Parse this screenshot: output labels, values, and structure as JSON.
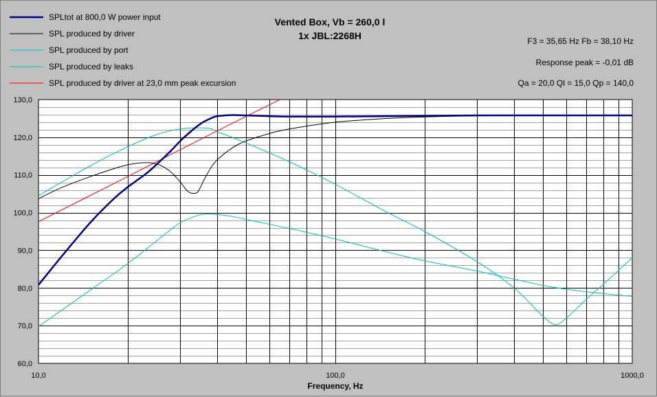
{
  "chart_data": {
    "type": "line",
    "title": "Vented Box, Vb = 260,0 l",
    "subtitle": "1x JBL:2268H",
    "xlabel": "Frequency, Hz",
    "ylabel": "",
    "x_scale": "log",
    "xlim": [
      10,
      1000
    ],
    "ylim": [
      60,
      130
    ],
    "grid": true,
    "legend_position": "top-left",
    "x_tick_labels": [
      "10,0",
      "100,0",
      "1000,0"
    ],
    "y_tick_labels": [
      "130,0",
      "120,0",
      "110,0",
      "100,0",
      "90,0",
      "80,0",
      "70,0",
      "60,0"
    ],
    "info": {
      "line1": "F3 = 35,65 Hz  Fb = 38,10 Hz",
      "line2": "Response peak = -0,01 dB",
      "line3": "Qa = 20,0  Ql = 15,0  Qp = 140,0"
    },
    "series": [
      {
        "name": "SPLtot at 800,0 W power input",
        "color": "#000080",
        "width": 2.5,
        "x": [
          10,
          12,
          15,
          18,
          20,
          23,
          25,
          28,
          30,
          32,
          35,
          38,
          40,
          45,
          50,
          60,
          70,
          100,
          150,
          200,
          300,
          500,
          700,
          1000
        ],
        "y": [
          80.8,
          88.5,
          97.5,
          103.8,
          106.8,
          110.3,
          112.8,
          116.5,
          119.0,
          121.0,
          123.5,
          125.0,
          125.6,
          125.9,
          125.8,
          125.6,
          125.5,
          125.5,
          125.6,
          125.7,
          125.8,
          125.8,
          125.8,
          125.8
        ]
      },
      {
        "name": "SPL produced by driver",
        "color": "#000000",
        "width": 1,
        "x": [
          10,
          12,
          15,
          18,
          20,
          22,
          24,
          26,
          28,
          30,
          32,
          34,
          35,
          36,
          38,
          40,
          45,
          50,
          60,
          70,
          100,
          150,
          200,
          300,
          500,
          1000
        ],
        "y": [
          103.7,
          106.7,
          109.6,
          111.7,
          112.7,
          113.2,
          113.2,
          112.4,
          110.7,
          108.2,
          105.5,
          105.2,
          106.5,
          108.5,
          111.8,
          114.0,
          117.2,
          119.0,
          121.0,
          122.2,
          124.0,
          125.0,
          125.4,
          125.7,
          125.8,
          125.8
        ]
      },
      {
        "name": "SPL produced by port",
        "color": "#00c0c0",
        "width": 1,
        "x": [
          10,
          15,
          20,
          25,
          30,
          35,
          38,
          40,
          50,
          70,
          100,
          150,
          200,
          300,
          400,
          500,
          550,
          600,
          700,
          800,
          1000
        ],
        "y": [
          104.5,
          112.5,
          117.5,
          120.7,
          122.2,
          122.5,
          122.3,
          121.5,
          118.5,
          113.5,
          107.5,
          100.0,
          95.0,
          87.0,
          80.0,
          72.5,
          70.3,
          72.0,
          77.0,
          81.0,
          88.0
        ]
      },
      {
        "name": "SPL produced by leaks",
        "color": "#00c0c0",
        "width": 1,
        "x": [
          10,
          15,
          20,
          25,
          30,
          35,
          38,
          40,
          45,
          50,
          70,
          100,
          150,
          200,
          300,
          500,
          700,
          1000
        ],
        "y": [
          69.8,
          79.5,
          86.5,
          92.5,
          97.3,
          99.4,
          99.6,
          99.5,
          99.0,
          98.2,
          95.8,
          93.0,
          89.5,
          87.2,
          84.5,
          80.7,
          79.0,
          77.8
        ]
      },
      {
        "name": "SPL produced by driver at 23,0 mm peak excursion",
        "color": "#ff0000",
        "width": 1,
        "x": [
          10,
          20,
          30,
          40,
          65
        ],
        "y": [
          97.6,
          109.6,
          116.7,
          121.7,
          130.0
        ]
      }
    ]
  }
}
